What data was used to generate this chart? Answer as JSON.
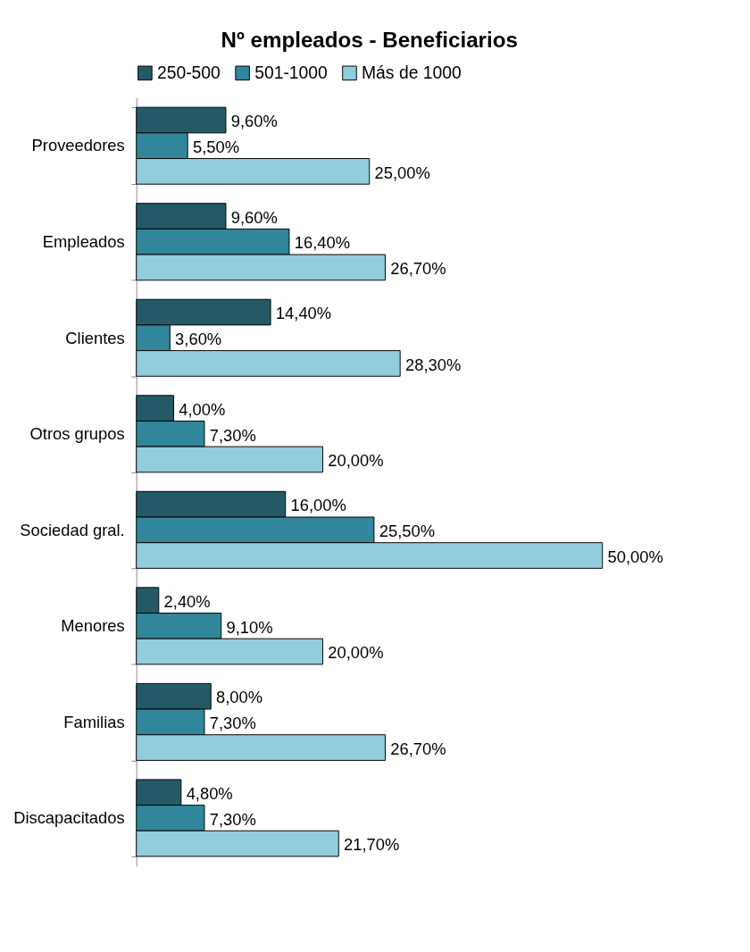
{
  "chart_data": {
    "type": "bar",
    "orientation": "horizontal",
    "title": "Nº empleados - Beneficiarios",
    "categories": [
      "Proveedores",
      "Empleados",
      "Clientes",
      "Otros grupos",
      "Sociedad gral.",
      "Menores",
      "Familias",
      "Discapacitados"
    ],
    "series": [
      {
        "name": "250-500",
        "color": "#245a66",
        "values": [
          9.6,
          9.6,
          14.4,
          4.0,
          16.0,
          2.4,
          8.0,
          4.8
        ],
        "value_labels": [
          "9,60%",
          "9,60%",
          "14,40%",
          "4,00%",
          "16,00%",
          "2,40%",
          "8,00%",
          "4,80%"
        ]
      },
      {
        "name": "501-1000",
        "color": "#31869b",
        "values": [
          5.5,
          16.4,
          3.6,
          7.3,
          25.5,
          9.1,
          7.3,
          7.3
        ],
        "value_labels": [
          "5,50%",
          "16,40%",
          "3,60%",
          "7,30%",
          "25,50%",
          "9,10%",
          "7,30%",
          "7,30%"
        ]
      },
      {
        "name": "Más de 1000",
        "color": "#92cddd",
        "values": [
          25.0,
          26.7,
          28.3,
          20.0,
          50.0,
          20.0,
          26.7,
          21.7
        ],
        "value_labels": [
          "25,00%",
          "26,70%",
          "28,30%",
          "20,00%",
          "50,00%",
          "20,00%",
          "26,70%",
          "21,70%"
        ]
      }
    ],
    "legend": "top",
    "grid": false,
    "tick_labels": "y"
  }
}
